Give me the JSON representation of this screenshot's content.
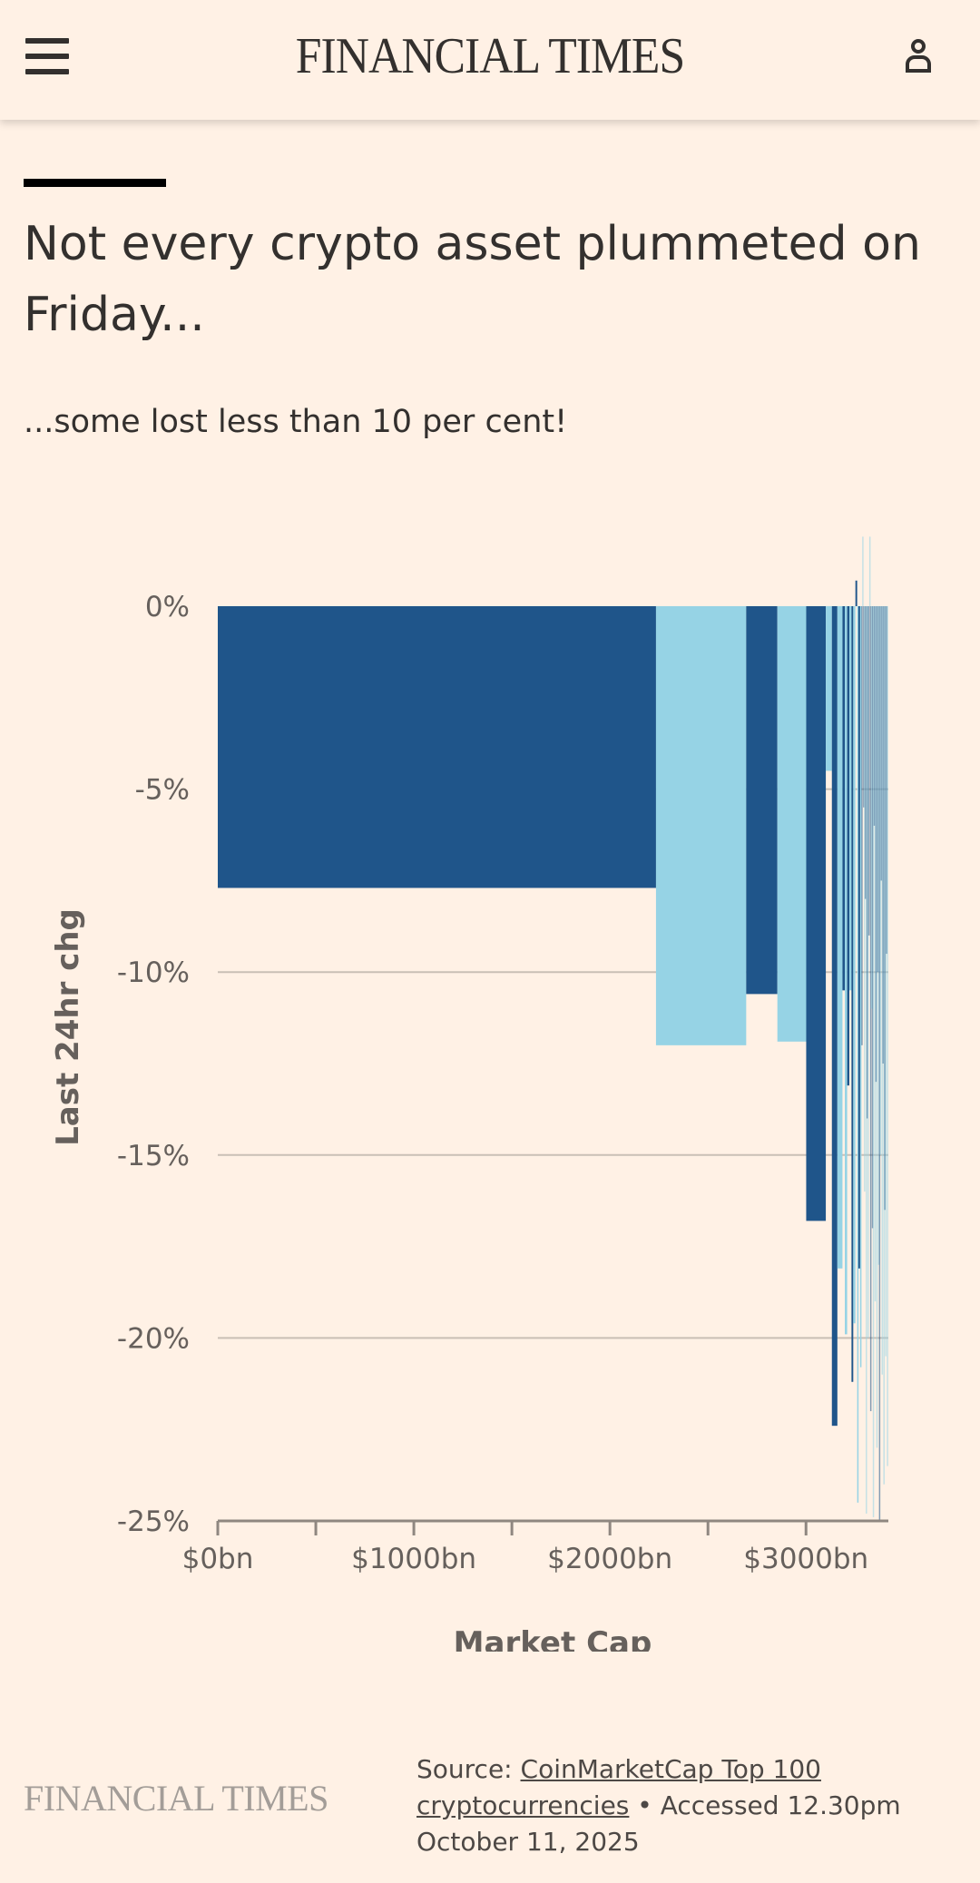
{
  "header": {
    "logo": "FINANCIAL TIMES",
    "menu_icon": "hamburger-icon",
    "user_icon": "user-icon"
  },
  "article": {
    "title": "Not every crypto asset plummeted on Friday...",
    "subtitle": "...some lost less than 10 per cent!"
  },
  "colors": {
    "background": "#fff1e5",
    "dark": "#1f558a",
    "light": "#96d3e5"
  },
  "chart_data": {
    "type": "bar",
    "subtype": "variable-width (marimekko)",
    "title": "Not every crypto asset plummeted on Friday...",
    "xlabel": "Market Cap",
    "ylabel": "Last 24hr chg",
    "xlim": [
      0,
      3420
    ],
    "ylim": [
      -25,
      0
    ],
    "x_ticks": [
      0,
      500,
      1000,
      1500,
      2000,
      2500,
      3000
    ],
    "x_tick_labels": [
      "$0bn",
      "",
      "$1000bn",
      "",
      "$2000bn",
      "",
      "$3000bn"
    ],
    "y_ticks": [
      0,
      -5,
      -10,
      -15,
      -20,
      -25
    ],
    "y_tick_labels": [
      "0%",
      "-5%",
      "-10%",
      "-15%",
      "-20%",
      "-25%"
    ],
    "grid": true,
    "bars": [
      {
        "cap": 2235,
        "chg": -7.7
      },
      {
        "cap": 460,
        "chg": -12.0
      },
      {
        "cap": 159,
        "chg": -10.6
      },
      {
        "cap": 147,
        "chg": -11.9
      },
      {
        "cap": 100,
        "chg": -16.8
      },
      {
        "cap": 31,
        "chg": -4.5
      },
      {
        "cap": 28,
        "chg": -22.4
      },
      {
        "cap": 26,
        "chg": -18.1
      },
      {
        "cap": 12,
        "chg": -10.5
      },
      {
        "cap": 12,
        "chg": -19.9
      },
      {
        "cap": 11,
        "chg": -13.1
      },
      {
        "cap": 11,
        "chg": -10.5
      },
      {
        "cap": 9,
        "chg": -21.2
      },
      {
        "cap": 11,
        "chg": -19.6
      },
      {
        "cap": 9,
        "chg": 0.7
      },
      {
        "cap": 6,
        "chg": -24.5
      },
      {
        "cap": 9,
        "chg": -18.1
      },
      {
        "cap": 6,
        "chg": -20.8
      },
      {
        "cap": 4.5,
        "chg": -12
      },
      {
        "cap": 4.5,
        "chg": 1.9
      },
      {
        "cap": 4.5,
        "chg": -5.5
      },
      {
        "cap": 4.5,
        "chg": -16
      },
      {
        "cap": 4.5,
        "chg": -8
      },
      {
        "cap": 4.5,
        "chg": -24.8
      },
      {
        "cap": 4.5,
        "chg": -14
      },
      {
        "cap": 4.5,
        "chg": -20
      },
      {
        "cap": 4.5,
        "chg": -9
      },
      {
        "cap": 4.5,
        "chg": 1.9
      },
      {
        "cap": 4.5,
        "chg": -22
      },
      {
        "cap": 4.5,
        "chg": -11
      },
      {
        "cap": 4.5,
        "chg": -17
      },
      {
        "cap": 4.5,
        "chg": -24.9
      },
      {
        "cap": 4.5,
        "chg": -6
      },
      {
        "cap": 4.5,
        "chg": -19
      },
      {
        "cap": 4.5,
        "chg": -13
      },
      {
        "cap": 4.5,
        "chg": -23
      },
      {
        "cap": 4.5,
        "chg": -10
      },
      {
        "cap": 4.5,
        "chg": -18
      },
      {
        "cap": 4.5,
        "chg": -25
      },
      {
        "cap": 4.5,
        "chg": -15
      },
      {
        "cap": 4.5,
        "chg": -7.5
      },
      {
        "cap": 4.5,
        "chg": -21
      },
      {
        "cap": 4.5,
        "chg": -12.5
      },
      {
        "cap": 4.5,
        "chg": -24
      },
      {
        "cap": 4.5,
        "chg": -16.5
      },
      {
        "cap": 4.5,
        "chg": -20.5
      },
      {
        "cap": 4.5,
        "chg": -9.5
      },
      {
        "cap": 4.5,
        "chg": -23.5
      }
    ]
  },
  "footer": {
    "logo": "FINANCIAL TIMES",
    "source_prefix": "Source: ",
    "source_link": "CoinMarketCap Top 100 cryptocurrencies",
    "source_suffix": " • Accessed 12.30pm October 11, 2025"
  }
}
